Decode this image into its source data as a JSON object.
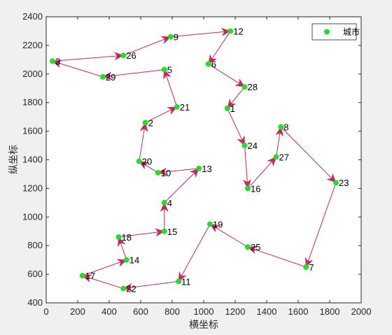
{
  "chart_data": {
    "type": "scatter",
    "xlabel": "横坐标",
    "ylabel": "纵坐标",
    "xlim": [
      0,
      2000
    ],
    "ylim": [
      400,
      2400
    ],
    "xticks": [
      0,
      200,
      400,
      600,
      800,
      1000,
      1200,
      1400,
      1600,
      1800,
      2000
    ],
    "yticks": [
      400,
      600,
      800,
      1000,
      1200,
      1400,
      1600,
      1800,
      2000,
      2200,
      2400
    ],
    "grid": false,
    "legend": {
      "position": "top-right",
      "entries": [
        "城市"
      ]
    },
    "colors": {
      "point": "#22e02a",
      "route": "#c8285c",
      "axes": "#262626",
      "background": "#ffffff"
    },
    "series": [
      {
        "name": "城市",
        "points": [
          {
            "label": "1",
            "x": 1150,
            "y": 1760
          },
          {
            "label": "2",
            "x": 630,
            "y": 1660
          },
          {
            "label": "3",
            "x": 40,
            "y": 2090
          },
          {
            "label": "4",
            "x": 750,
            "y": 1100
          },
          {
            "label": "5",
            "x": 750,
            "y": 2030
          },
          {
            "label": "6",
            "x": 1030,
            "y": 2070
          },
          {
            "label": "7",
            "x": 1650,
            "y": 650
          },
          {
            "label": "8",
            "x": 1490,
            "y": 1630
          },
          {
            "label": "9",
            "x": 790,
            "y": 2260
          },
          {
            "label": "10",
            "x": 710,
            "y": 1310
          },
          {
            "label": "11",
            "x": 840,
            "y": 550
          },
          {
            "label": "12",
            "x": 1170,
            "y": 2300
          },
          {
            "label": "13",
            "x": 970,
            "y": 1340
          },
          {
            "label": "14",
            "x": 510,
            "y": 700
          },
          {
            "label": "15",
            "x": 750,
            "y": 900
          },
          {
            "label": "16",
            "x": 1280,
            "y": 1200
          },
          {
            "label": "17",
            "x": 230,
            "y": 590
          },
          {
            "label": "18",
            "x": 460,
            "y": 860
          },
          {
            "label": "19",
            "x": 1040,
            "y": 950
          },
          {
            "label": "20",
            "x": 590,
            "y": 1390
          },
          {
            "label": "21",
            "x": 830,
            "y": 1770
          },
          {
            "label": "22",
            "x": 490,
            "y": 500
          },
          {
            "label": "23",
            "x": 1840,
            "y": 1240
          },
          {
            "label": "24",
            "x": 1260,
            "y": 1500
          },
          {
            "label": "25",
            "x": 1280,
            "y": 790
          },
          {
            "label": "26",
            "x": 490,
            "y": 2130
          },
          {
            "label": "27",
            "x": 1460,
            "y": 1420
          },
          {
            "label": "28",
            "x": 1260,
            "y": 1910
          },
          {
            "label": "29",
            "x": 360,
            "y": 1980
          }
        ]
      }
    ],
    "route": [
      "12",
      "6",
      "28",
      "1",
      "24",
      "16",
      "27",
      "8",
      "23",
      "7",
      "25",
      "19",
      "11",
      "22",
      "17",
      "14",
      "18",
      "15",
      "4",
      "13",
      "10",
      "20",
      "2",
      "21",
      "5",
      "29",
      "3",
      "26",
      "9",
      "12"
    ]
  }
}
